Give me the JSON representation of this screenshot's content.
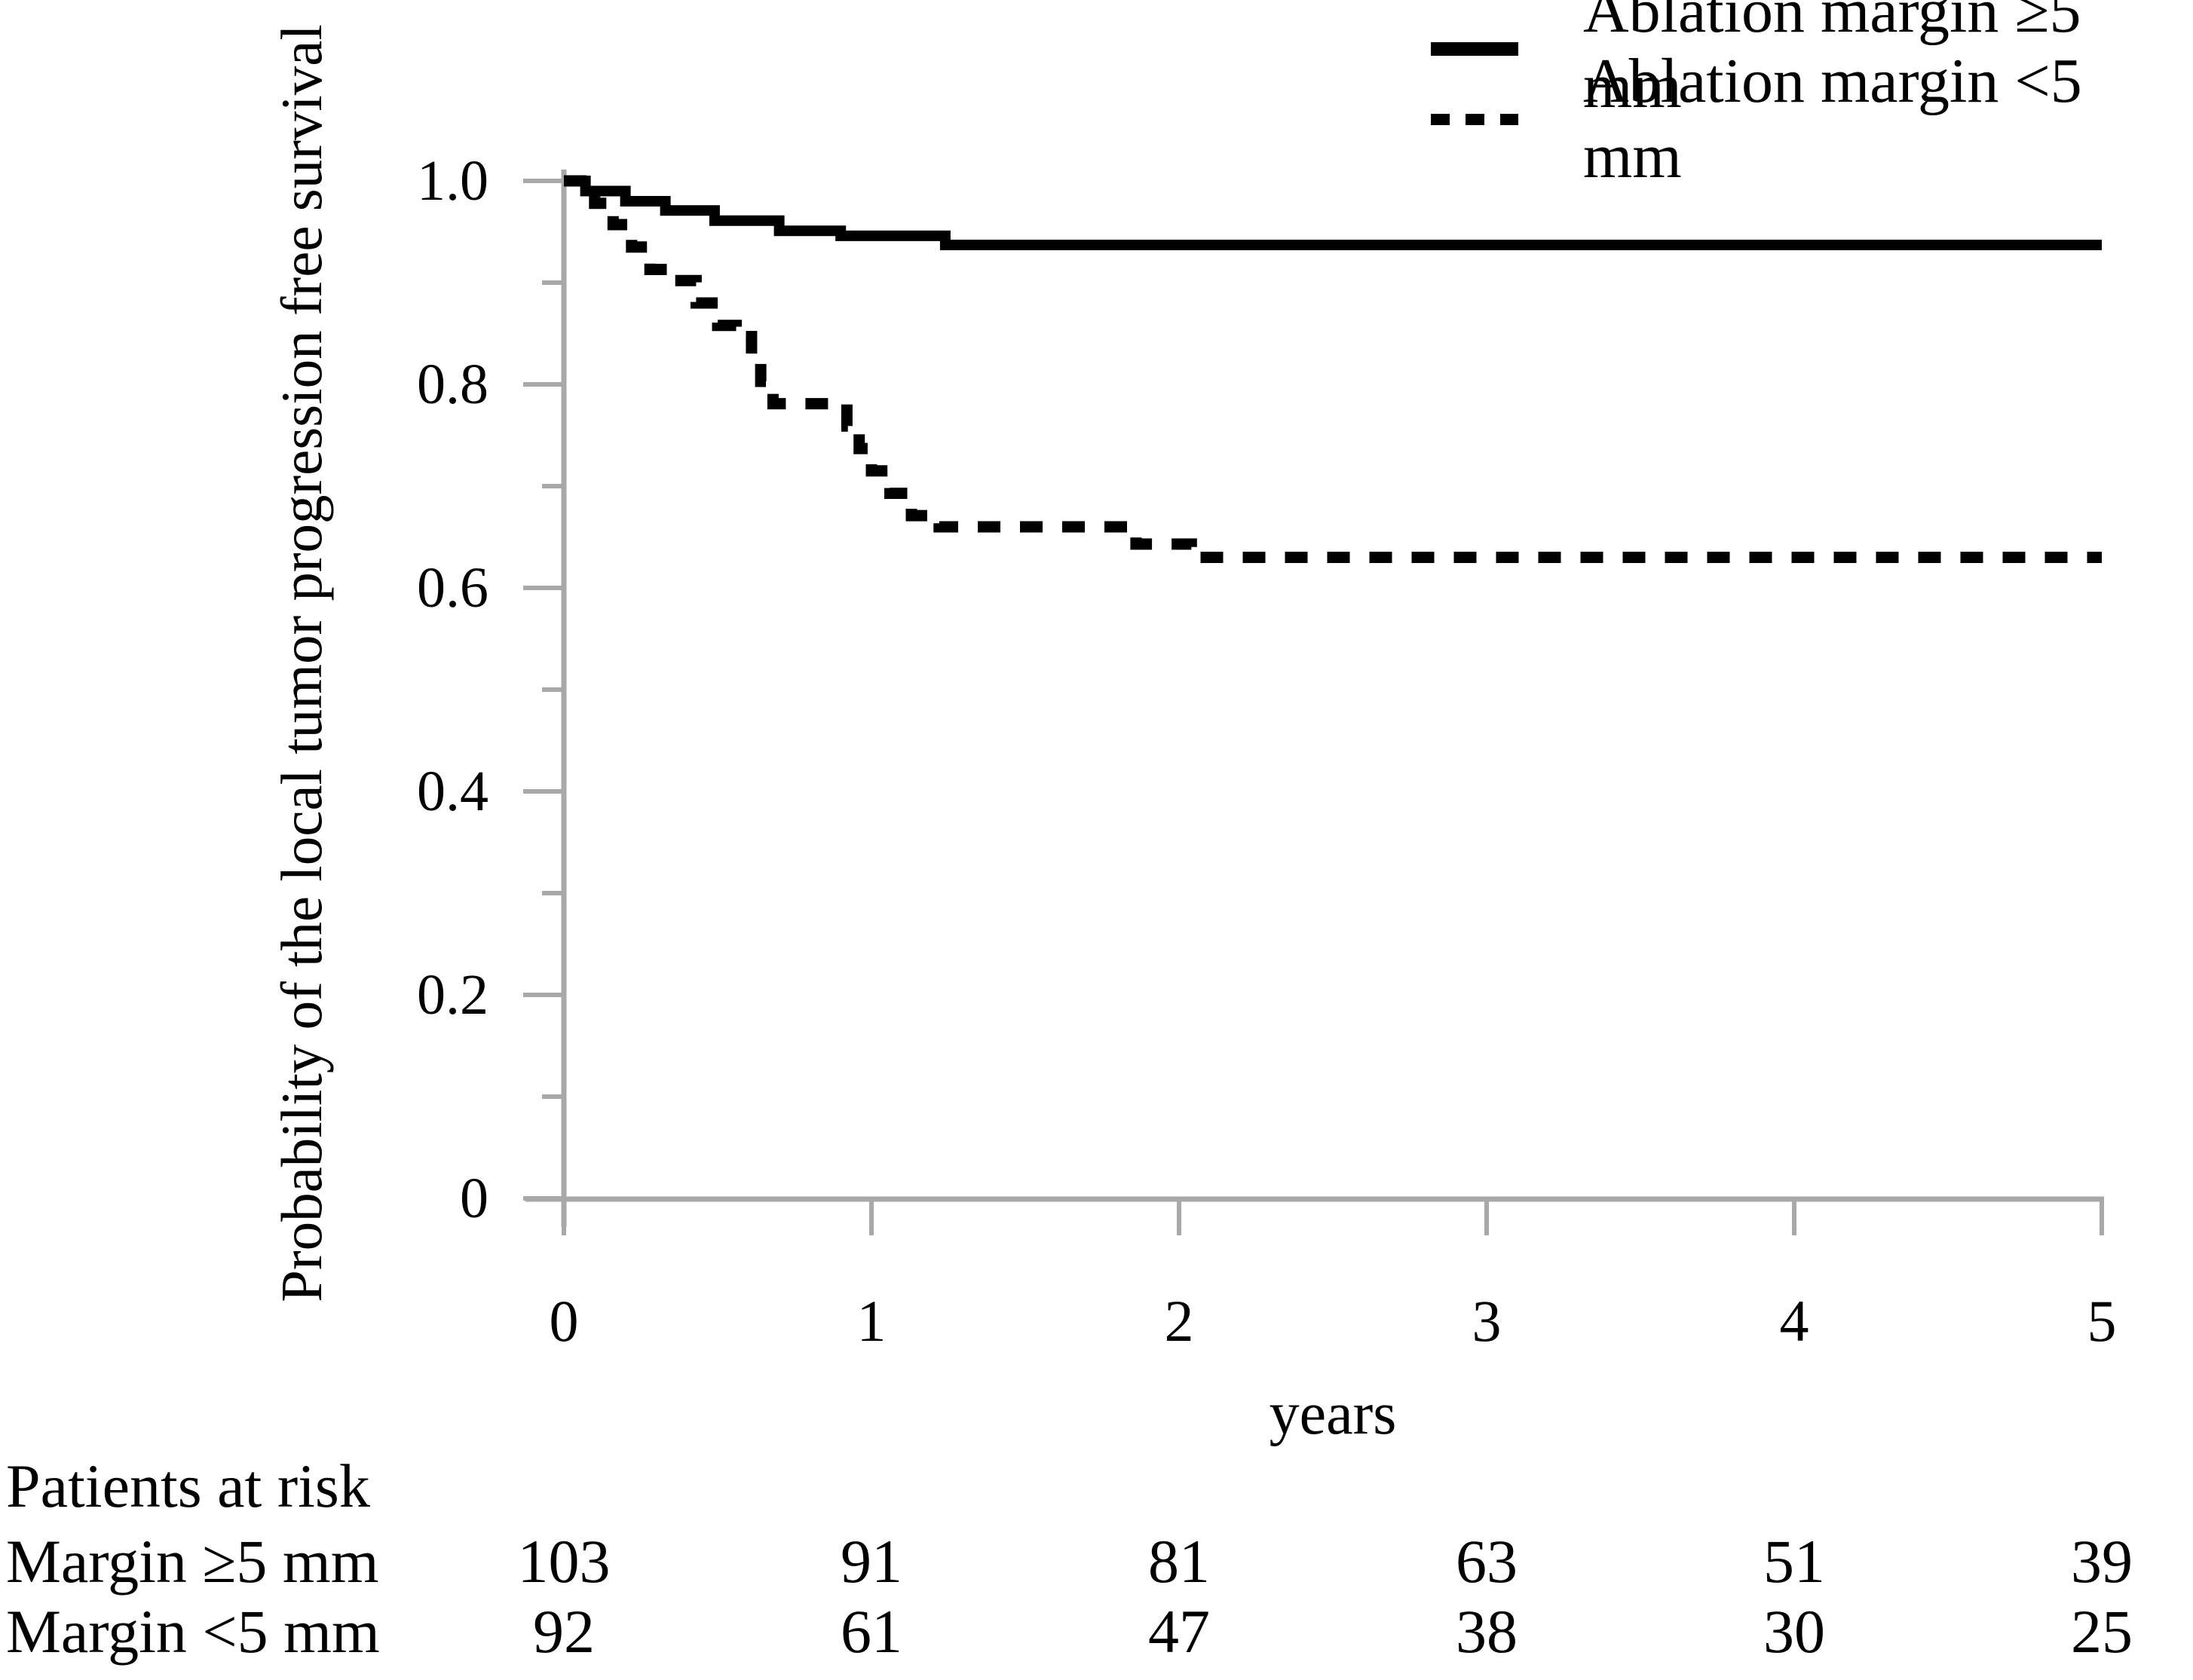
{
  "colors": {
    "line": "#000000",
    "axis": "#a8a8a8",
    "background": "#ffffff",
    "text": "#000000"
  },
  "chart_data": {
    "type": "line",
    "subtype": "kaplan-meier-step",
    "title": "",
    "xlabel": "years",
    "ylabel": "Probability of the local tumor progression free survival",
    "xlim": [
      0,
      5
    ],
    "ylim": [
      0,
      1.0
    ],
    "grid": false,
    "legend_position": "top-right",
    "x_ticks": [
      0,
      1,
      2,
      3,
      4,
      5
    ],
    "x_tick_labels": [
      "0",
      "1",
      "2",
      "3",
      "4",
      "5"
    ],
    "y_ticks": [
      1.0,
      0.8,
      0.6,
      0.4,
      0.2,
      0
    ],
    "y_tick_labels": [
      "1.0",
      "0.8",
      "0.6",
      "0.4",
      "0.2",
      "0"
    ],
    "y_minor_ticks": [
      0.9,
      0.7,
      0.5,
      0.3,
      0.1
    ],
    "series": [
      {
        "name": "Ablation margin ≥5 mm",
        "style": "solid",
        "final_value": 0.94,
        "points": [
          [
            0,
            1.0
          ],
          [
            0.07,
            1.0
          ],
          [
            0.07,
            0.99
          ],
          [
            0.2,
            0.99
          ],
          [
            0.2,
            0.98
          ],
          [
            0.33,
            0.98
          ],
          [
            0.33,
            0.971
          ],
          [
            0.49,
            0.971
          ],
          [
            0.49,
            0.961
          ],
          [
            0.7,
            0.961
          ],
          [
            0.7,
            0.951
          ],
          [
            0.9,
            0.951
          ],
          [
            0.9,
            0.946
          ],
          [
            1.24,
            0.946
          ],
          [
            1.24,
            0.937
          ],
          [
            5,
            0.937
          ]
        ]
      },
      {
        "name": "Ablation margin <5 mm",
        "style": "dashed",
        "final_value": 0.63,
        "points": [
          [
            0,
            1.0
          ],
          [
            0.1,
            1.0
          ],
          [
            0.1,
            0.978
          ],
          [
            0.16,
            0.978
          ],
          [
            0.16,
            0.957
          ],
          [
            0.22,
            0.957
          ],
          [
            0.22,
            0.935
          ],
          [
            0.28,
            0.935
          ],
          [
            0.28,
            0.913
          ],
          [
            0.36,
            0.913
          ],
          [
            0.36,
            0.902
          ],
          [
            0.43,
            0.902
          ],
          [
            0.43,
            0.88
          ],
          [
            0.5,
            0.88
          ],
          [
            0.5,
            0.858
          ],
          [
            0.56,
            0.858
          ],
          [
            0.56,
            0.847
          ],
          [
            0.61,
            0.847
          ],
          [
            0.61,
            0.825
          ],
          [
            0.64,
            0.825
          ],
          [
            0.64,
            0.803
          ],
          [
            0.68,
            0.803
          ],
          [
            0.68,
            0.781
          ],
          [
            0.92,
            0.781
          ],
          [
            0.92,
            0.759
          ],
          [
            0.96,
            0.759
          ],
          [
            0.96,
            0.737
          ],
          [
            1.0,
            0.737
          ],
          [
            1.0,
            0.715
          ],
          [
            1.06,
            0.715
          ],
          [
            1.06,
            0.693
          ],
          [
            1.13,
            0.693
          ],
          [
            1.13,
            0.671
          ],
          [
            1.22,
            0.671
          ],
          [
            1.22,
            0.66
          ],
          [
            1.86,
            0.66
          ],
          [
            1.86,
            0.643
          ],
          [
            2.04,
            0.643
          ],
          [
            2.04,
            0.63
          ],
          [
            5,
            0.63
          ]
        ]
      }
    ]
  },
  "legend": {
    "items": [
      {
        "label": "Ablation margin ≥5 mm",
        "line": "solid"
      },
      {
        "label": "Ablation margin <5 mm",
        "line": "dashed"
      }
    ]
  },
  "risk_table": {
    "title": "Patients at risk",
    "time_points": [
      "0",
      "1",
      "2",
      "3",
      "4",
      "5"
    ],
    "rows": [
      {
        "label": "Margin ≥5 mm",
        "values": [
          "103",
          "91",
          "81",
          "63",
          "51",
          "39"
        ]
      },
      {
        "label": "Margin <5 mm",
        "values": [
          "92",
          "61",
          "47",
          "38",
          "30",
          "25"
        ]
      }
    ]
  }
}
